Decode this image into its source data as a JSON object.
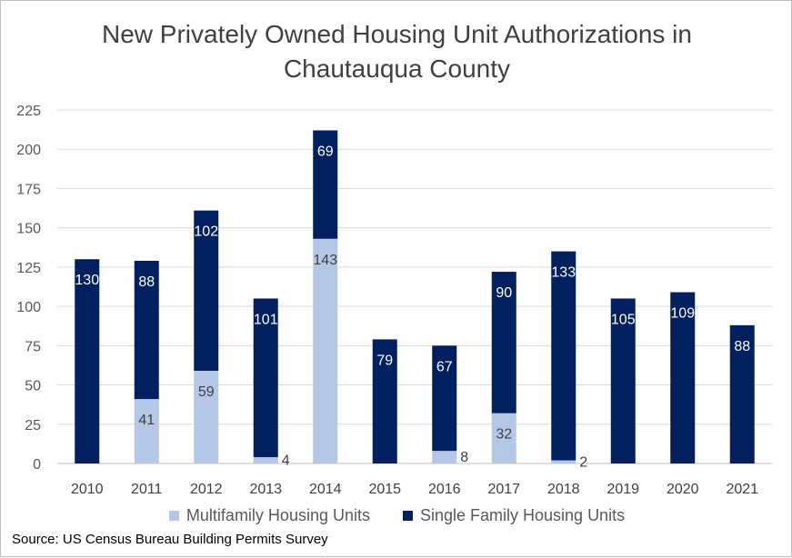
{
  "chart_data": {
    "type": "bar",
    "stacked": true,
    "title_lines": [
      "New Privately Owned Housing Unit Authorizations in",
      "Chautauqua County"
    ],
    "categories": [
      "2010",
      "2011",
      "2012",
      "2013",
      "2014",
      "2015",
      "2016",
      "2017",
      "2018",
      "2019",
      "2020",
      "2021"
    ],
    "series": [
      {
        "name": "Multifamily Housing Units",
        "color": "#b4c7e7",
        "values": [
          0,
          41,
          59,
          4,
          143,
          0,
          8,
          32,
          2,
          0,
          0,
          0
        ],
        "labels": [
          "",
          "41",
          "59",
          "4",
          "143",
          "",
          "8",
          "32",
          "2",
          "",
          "",
          ""
        ]
      },
      {
        "name": "Single Family Housing Units",
        "color": "#002060",
        "values": [
          130,
          88,
          102,
          101,
          69,
          79,
          67,
          90,
          133,
          105,
          109,
          88
        ],
        "labels": [
          "130",
          "88",
          "102",
          "101",
          "69",
          "79",
          "67",
          "90",
          "133",
          "105",
          "109",
          "88"
        ]
      }
    ],
    "ylim": [
      0,
      225
    ],
    "yticks": [
      "0",
      "25",
      "50",
      "75",
      "100",
      "125",
      "150",
      "175",
      "200",
      "225"
    ],
    "grid": true,
    "legend_position": "bottom",
    "xlabel": "",
    "ylabel": ""
  },
  "source": "Source: US Census Bureau Building Permits Survey"
}
